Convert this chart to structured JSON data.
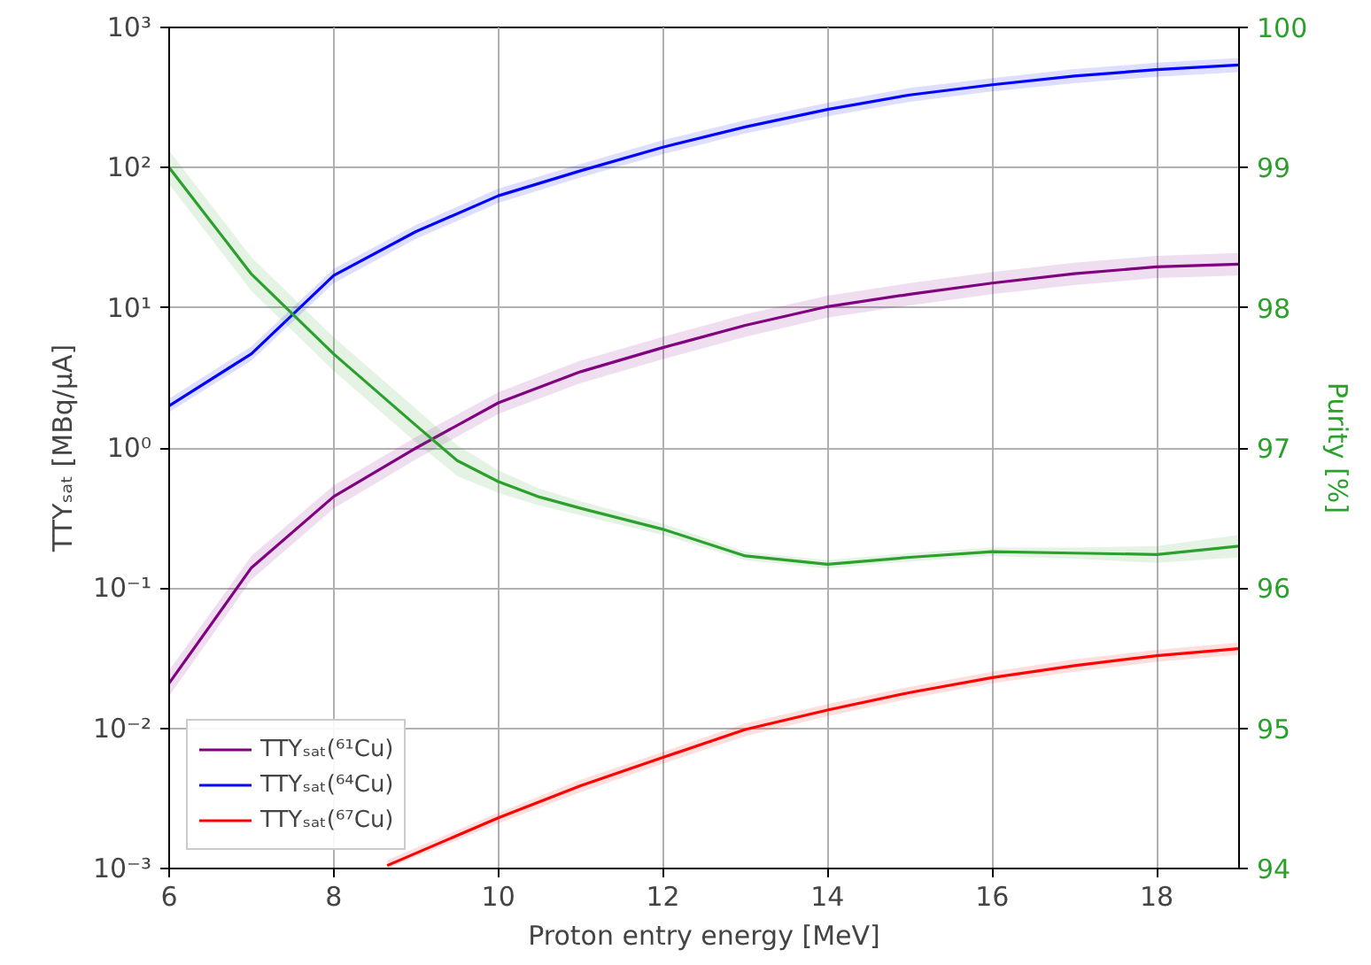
{
  "chart_data": {
    "type": "line",
    "xlabel": "Proton entry energy [MeV]",
    "ylabel": "TTYₛₐₜ [MBq/μA]",
    "y2label": "Purity [%]",
    "log": "y",
    "grid": true,
    "legend": "bottom left",
    "marker": "none",
    "line_style": "solid",
    "xlim": [
      6,
      19
    ],
    "xticks": [
      6,
      8,
      10,
      12,
      14,
      16,
      18
    ],
    "ylim": [
      0.001,
      1000
    ],
    "yticks": [
      {
        "value": 0.001,
        "label": "10⁻³"
      },
      {
        "value": 0.01,
        "label": "10⁻²"
      },
      {
        "value": 0.1,
        "label": "10⁻¹"
      },
      {
        "value": 1,
        "label": "10⁰"
      },
      {
        "value": 10,
        "label": "10¹"
      },
      {
        "value": 100,
        "label": "10²"
      },
      {
        "value": 1000,
        "label": "10³"
      }
    ],
    "y2lim": [
      94,
      100
    ],
    "y2ticks": [
      94,
      95,
      96,
      97,
      98,
      99,
      100
    ],
    "series": [
      {
        "name": "TTYₛₐₜ(⁶¹Cu)",
        "color": "#800080",
        "x": [
          6,
          7,
          8,
          9,
          10,
          11,
          12,
          13,
          14,
          15,
          16,
          17,
          18,
          19
        ],
        "values": [
          0.021,
          0.14,
          0.45,
          1.0,
          2.1,
          3.5,
          5.2,
          7.5,
          10.2,
          12.5,
          15,
          17.5,
          19.6,
          20.5
        ],
        "lower": [
          0.017,
          0.115,
          0.37,
          0.83,
          1.75,
          2.9,
          4.3,
          6.2,
          8.5,
          10.4,
          12.5,
          14.5,
          16.3,
          17
        ],
        "upper": [
          0.026,
          0.17,
          0.54,
          1.2,
          2.5,
          4.2,
          6.2,
          9,
          12.2,
          15,
          18,
          21,
          23.5,
          24.6
        ]
      },
      {
        "name": "TTYₛₐₜ(⁶⁴Cu)",
        "color": "#0000ff",
        "x": [
          6,
          7,
          8,
          9,
          10,
          11,
          12,
          13,
          14,
          15,
          16,
          17,
          18,
          19
        ],
        "values": [
          2.0,
          4.7,
          17,
          35,
          63,
          95,
          140,
          195,
          260,
          330,
          390,
          450,
          500,
          540
        ],
        "lower": [
          1.8,
          4.2,
          15,
          31,
          56,
          85,
          125,
          175,
          232,
          295,
          350,
          400,
          445,
          480
        ],
        "upper": [
          2.25,
          5.3,
          19,
          39,
          71,
          106,
          157,
          218,
          290,
          370,
          435,
          505,
          560,
          605
        ]
      },
      {
        "name": "TTYₛₐₜ(⁶⁷Cu)",
        "color": "#ff0000",
        "x": [
          8.65,
          10,
          11,
          12,
          13,
          14,
          15,
          16,
          17,
          18,
          19
        ],
        "values": [
          0.00105,
          0.0023,
          0.0039,
          0.0062,
          0.0098,
          0.0135,
          0.018,
          0.023,
          0.028,
          0.033,
          0.037
        ],
        "lower": [
          0.001,
          0.0021,
          0.0035,
          0.0056,
          0.0088,
          0.0122,
          0.0163,
          0.021,
          0.0253,
          0.0298,
          0.0334
        ],
        "upper": [
          0.00115,
          0.0025,
          0.0043,
          0.0068,
          0.0108,
          0.0149,
          0.0198,
          0.0253,
          0.031,
          0.0363,
          0.041
        ]
      },
      {
        "color": "#2ca02c",
        "axis": "y2",
        "x": [
          6,
          7,
          8,
          9,
          9.5,
          10,
          10.5,
          11,
          12,
          13,
          14,
          15,
          16,
          17,
          18,
          19
        ],
        "values": [
          99.0,
          98.24,
          97.67,
          97.16,
          96.91,
          96.76,
          96.65,
          96.57,
          96.42,
          96.23,
          96.17,
          96.22,
          96.26,
          96.25,
          96.24,
          96.3
        ],
        "lower": [
          98.88,
          98.12,
          97.55,
          97.04,
          96.8,
          96.68,
          96.59,
          96.52,
          96.38,
          96.2,
          96.14,
          96.19,
          96.23,
          96.21,
          96.18,
          96.22
        ],
        "upper": [
          99.12,
          98.36,
          97.79,
          97.28,
          97.02,
          96.84,
          96.71,
          96.62,
          96.46,
          96.26,
          96.2,
          96.25,
          96.29,
          96.29,
          96.3,
          96.38
        ]
      }
    ]
  }
}
